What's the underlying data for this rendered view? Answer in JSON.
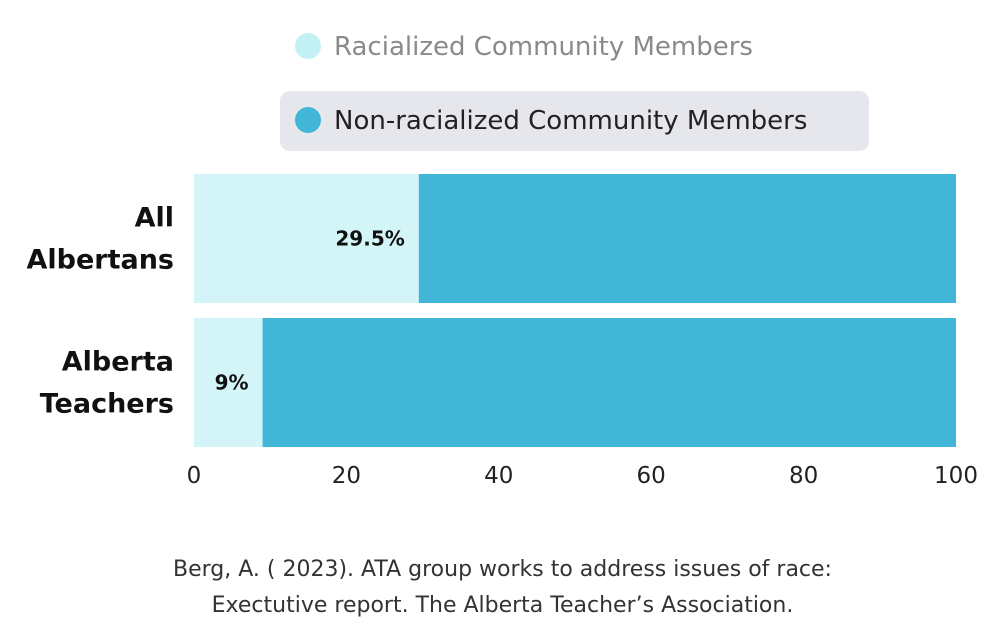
{
  "chart_data": {
    "type": "bar",
    "orientation": "horizontal",
    "stacked": true,
    "title": "",
    "xlabel": "",
    "ylabel": "",
    "xlim": [
      0,
      100
    ],
    "xticks": [
      0,
      20,
      40,
      60,
      80,
      100
    ],
    "categories": [
      "All Albertans",
      "Alberta Teachers"
    ],
    "category_lines": [
      [
        "All",
        "Albertans"
      ],
      [
        "Alberta",
        "Teachers"
      ]
    ],
    "series": [
      {
        "name": "Racialized Community Members",
        "values": [
          29.5,
          9
        ],
        "color": "#d4f5f7",
        "marker_color": "#c2f0f4",
        "data_labels": [
          "29.5%",
          "9%"
        ]
      },
      {
        "name": "Non-racialized Community Members",
        "values": [
          70.5,
          91
        ],
        "color": "#41b6d6",
        "marker_color": "#41b6d6"
      }
    ],
    "legend_position": "top",
    "legend_highlight_bg": "#e6e7ec",
    "legend_text_colors": [
      "#8a8a8a",
      "#222222"
    ]
  },
  "citation": {
    "line1": "Berg, A. ( 2023). ATA group works to address issues of race:",
    "line2": "Exectutive report. The Alberta Teacher’s Association."
  }
}
